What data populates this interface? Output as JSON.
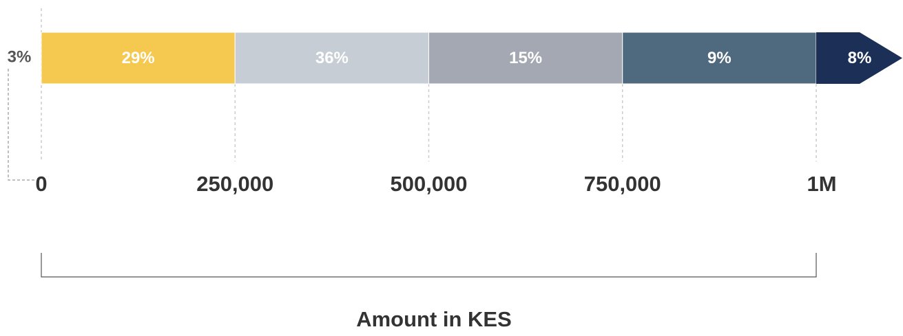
{
  "chart_data": {
    "type": "segmented_bar",
    "x_label": "Amount in KES",
    "values": [
      3,
      29,
      36,
      15,
      9,
      8
    ],
    "value_labels": [
      "3%",
      "29%",
      "36%",
      "15%",
      "9%",
      "8%"
    ],
    "colors": [
      null,
      "#f5c84f",
      "#c6cdd4",
      "#a4a8b2",
      "#4f6a7e",
      "#1b2f57"
    ],
    "xlim": [
      0,
      1000000
    ],
    "xticks": [
      0,
      {
        "value": 250000,
        "label": "250,000"
      },
      {
        "value": 500000,
        "label": "500,000"
      },
      {
        "value": 750000,
        "label": "750,000"
      },
      {
        "value": 1000000,
        "label": "1M"
      }
    ]
  }
}
